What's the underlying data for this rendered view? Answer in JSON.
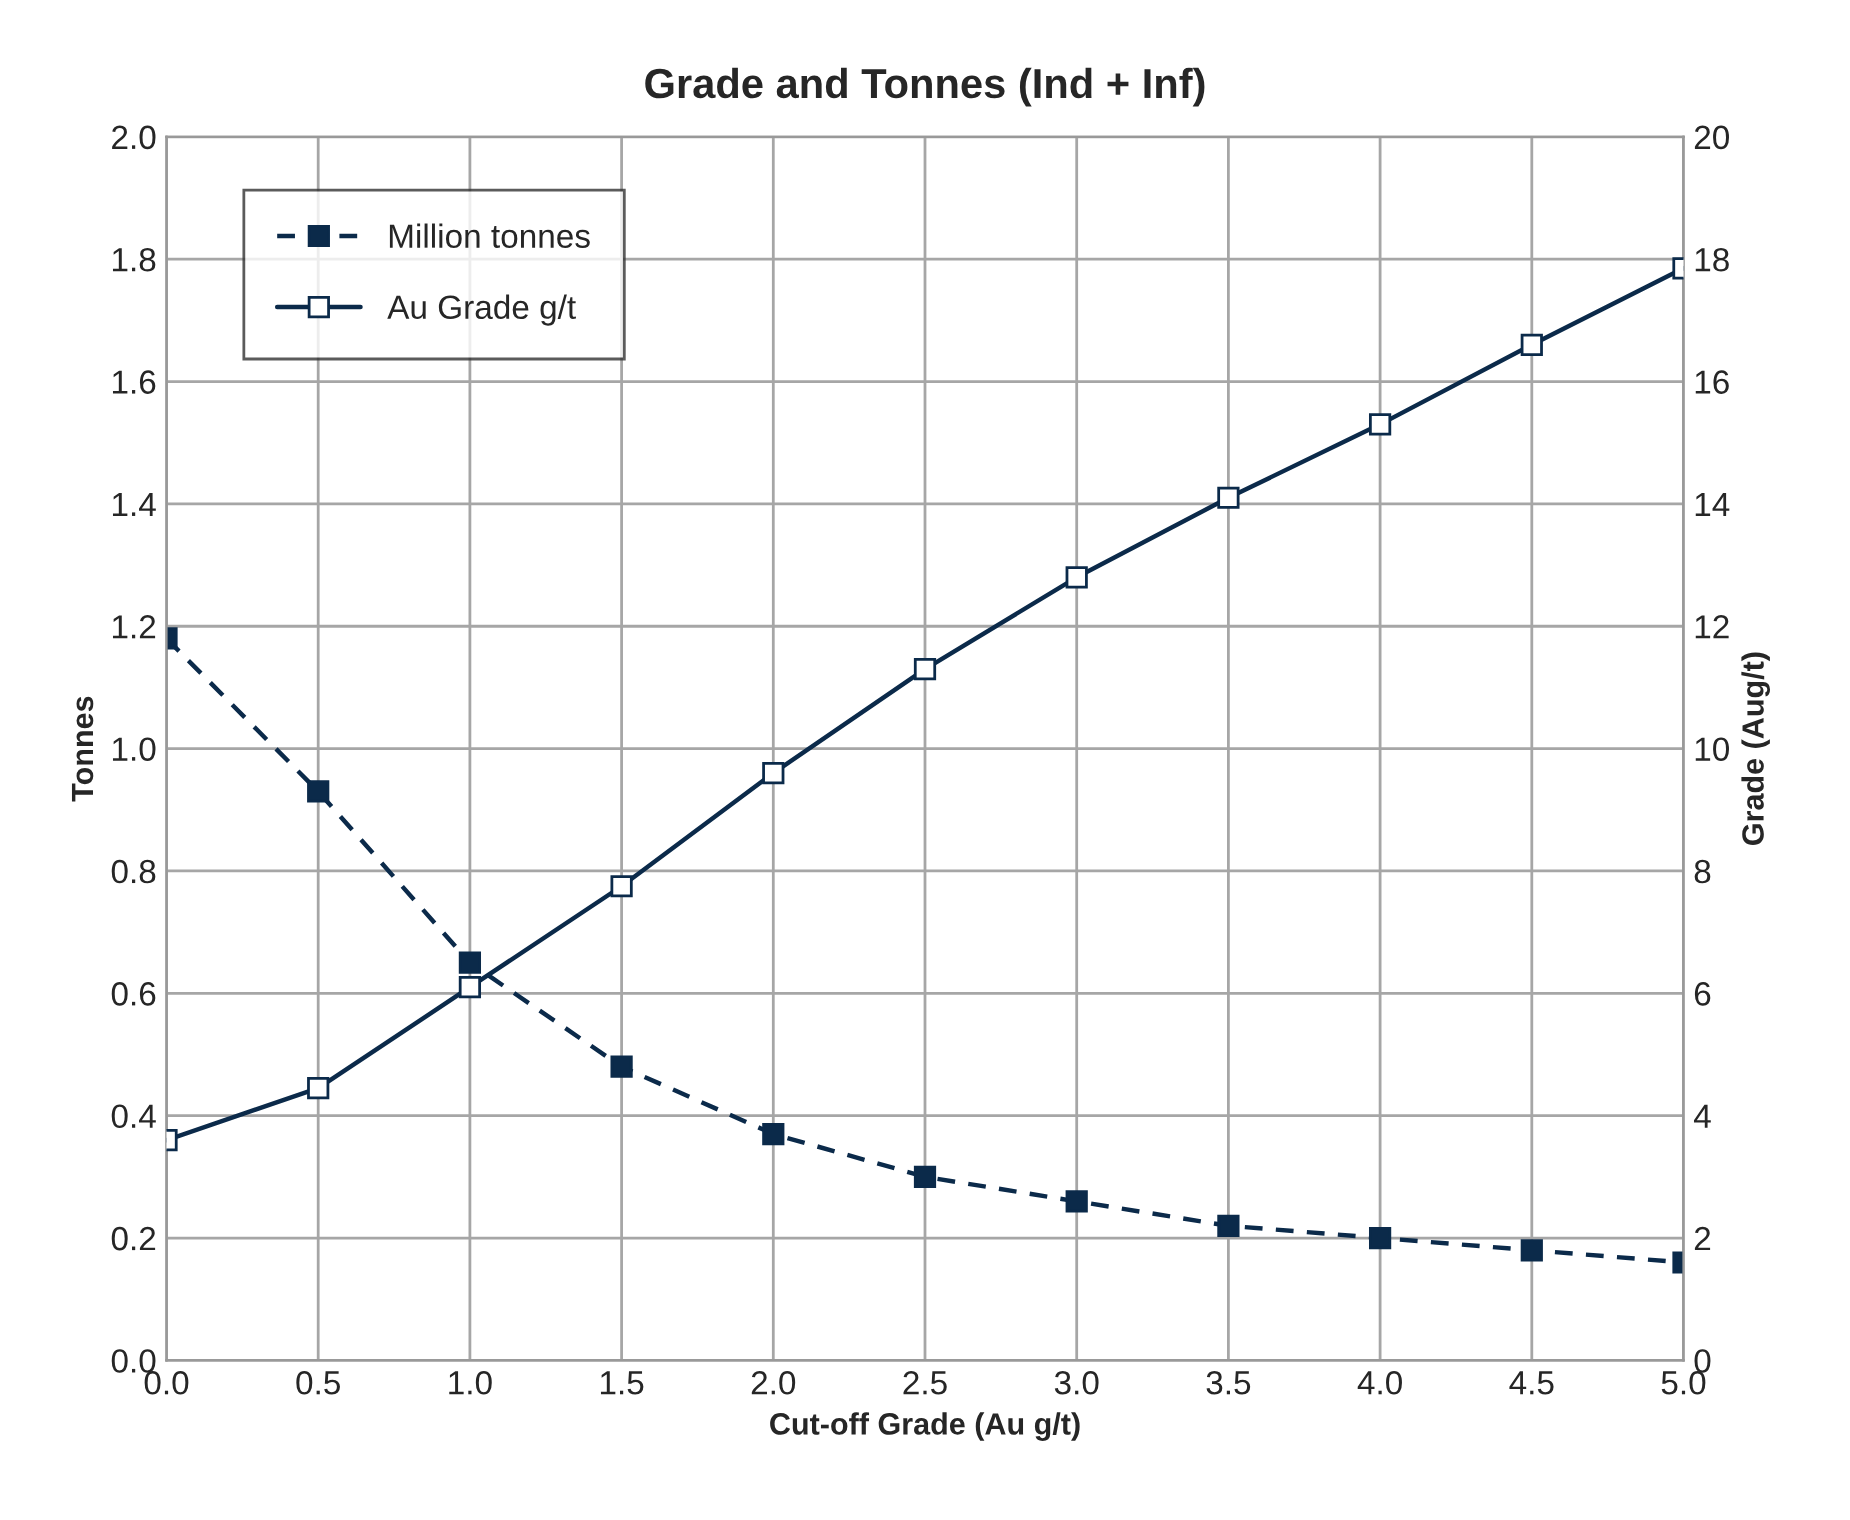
{
  "chart_data": {
    "type": "line",
    "title": "Grade and Tonnes (Ind + Inf)",
    "xlabel": "Cut-off Grade (Au g/t)",
    "ylabel": "Tonnes",
    "y2label": "Grade (Aug/t)",
    "x": [
      0.0,
      0.5,
      1.0,
      1.5,
      2.0,
      2.5,
      3.0,
      3.5,
      4.0,
      4.5,
      5.0
    ],
    "series": [
      {
        "name": "Million tonnes",
        "color": "#0b2a4a",
        "values": [
          1.18,
          0.93,
          0.65,
          0.48,
          0.37,
          0.3,
          0.26,
          0.22,
          0.2,
          0.18,
          0.16
        ],
        "line_style": "dashed",
        "marker": "square"
      },
      {
        "name": "Au Grade g/t",
        "color": "#0b2a4a",
        "values": [
          3.6,
          4.45,
          6.1,
          7.75,
          9.6,
          11.3,
          12.8,
          14.1,
          15.3,
          16.6,
          17.85
        ],
        "axis": "y2",
        "line_style": "solid",
        "marker": "square"
      }
    ],
    "xlim": [
      0,
      5
    ],
    "xticks": [
      {
        "value": 0,
        "label": "0.0"
      },
      {
        "value": 0.5,
        "label": "0.5"
      },
      {
        "value": 1,
        "label": "1.0"
      },
      {
        "value": 1.5,
        "label": "1.5"
      },
      {
        "value": 2,
        "label": "2.0"
      },
      {
        "value": 2.5,
        "label": "2.5"
      },
      {
        "value": 3,
        "label": "3.0"
      },
      {
        "value": 3.5,
        "label": "3.5"
      },
      {
        "value": 4,
        "label": "4.0"
      },
      {
        "value": 4.5,
        "label": "4.5"
      },
      {
        "value": 5,
        "label": "5.0"
      }
    ],
    "ylim": [
      0,
      2
    ],
    "yticks": [
      {
        "value": 0,
        "label": "0.0"
      },
      {
        "value": 0.2,
        "label": "0.2"
      },
      {
        "value": 0.4,
        "label": "0.4"
      },
      {
        "value": 0.6,
        "label": "0.6"
      },
      {
        "value": 0.8,
        "label": "0.8"
      },
      {
        "value": 1.0,
        "label": "1.0"
      },
      {
        "value": 1.2,
        "label": "1.2"
      },
      {
        "value": 1.4,
        "label": "1.4"
      },
      {
        "value": 1.6,
        "label": "1.6"
      },
      {
        "value": 1.8,
        "label": "1.8"
      },
      {
        "value": 2.0,
        "label": "2.0"
      }
    ],
    "y2lim": [
      0,
      20
    ],
    "y2ticks": [
      0,
      2,
      4,
      6,
      8,
      10,
      12,
      14,
      16,
      18,
      20
    ],
    "grid": true,
    "legend": "top left"
  }
}
